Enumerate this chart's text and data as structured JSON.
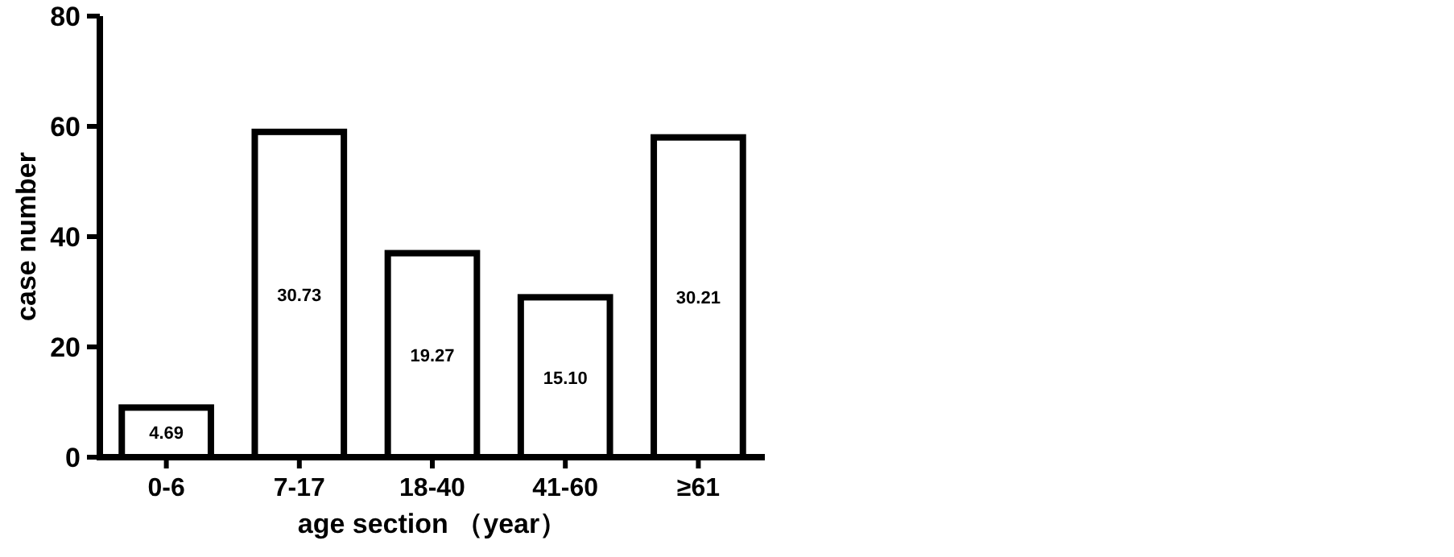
{
  "chart_data": {
    "type": "bar",
    "xlabel": "age section （year）",
    "ylabel": "case number",
    "categories": [
      "0-6",
      "7-17",
      "18-40",
      "41-60",
      "≥61"
    ],
    "values": [
      9,
      59,
      37,
      29,
      58
    ],
    "annotations": [
      "4.69",
      "30.73",
      "19.27",
      "15.10",
      "30.21"
    ],
    "color": "#ffffff",
    "ylim": [
      0,
      80
    ],
    "yticks": [
      0,
      20,
      40,
      60,
      80
    ]
  }
}
